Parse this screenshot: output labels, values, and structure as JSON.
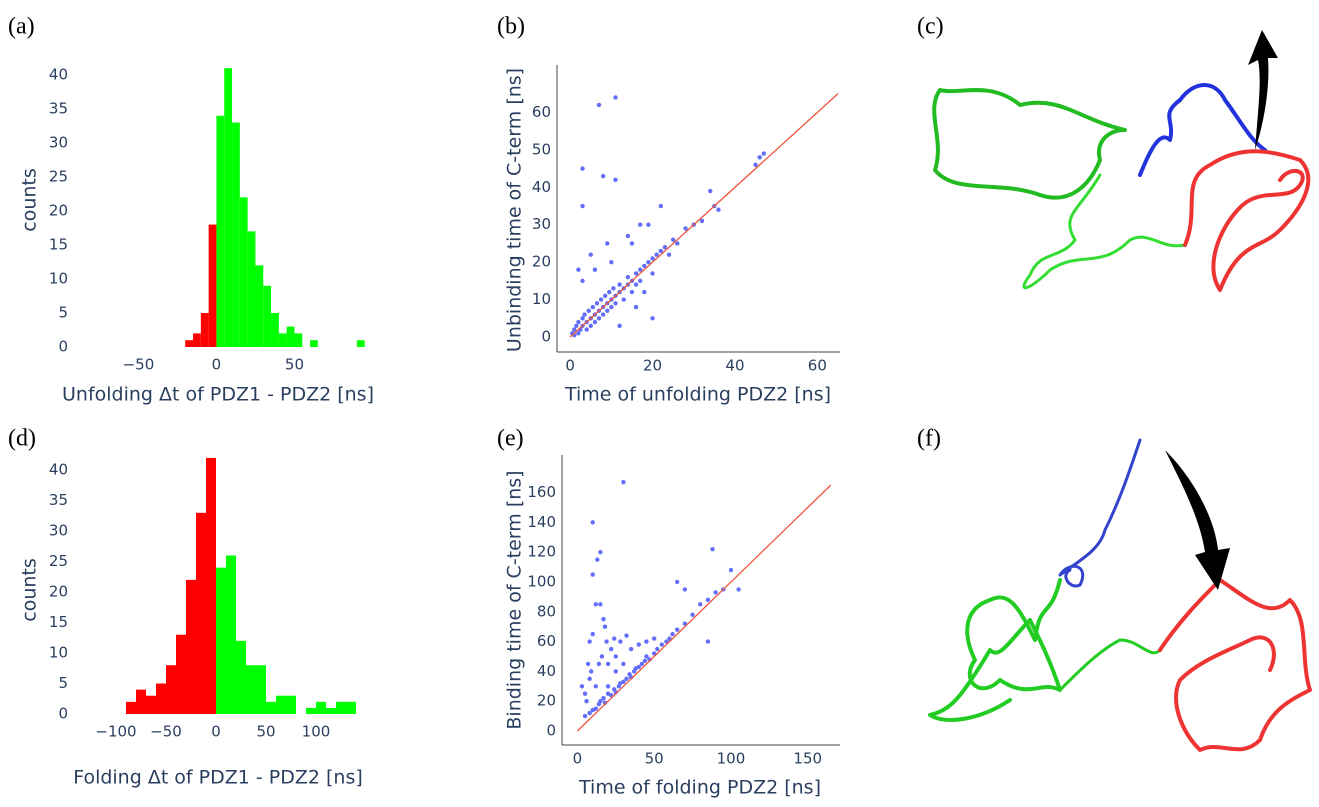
{
  "panel_labels": [
    "(a)",
    "(b)",
    "(c)",
    "(d)",
    "(e)",
    "(f)"
  ],
  "chart_data": [
    {
      "type": "histogram",
      "xlabel": "Unfolding Δt of PDZ1 - PDZ2 [ns]",
      "ylabel": "counts",
      "bins": [
        -20,
        -15,
        -10,
        -5,
        0,
        5,
        10,
        15,
        20,
        25,
        30,
        35,
        40,
        45,
        50,
        55,
        60,
        65,
        70,
        75,
        80,
        85,
        90,
        95
      ],
      "values": [
        1,
        2,
        5,
        18,
        34,
        41,
        33,
        22,
        17,
        12,
        9,
        5,
        2,
        3,
        2,
        0,
        1,
        0,
        0,
        0,
        0,
        0,
        1
      ],
      "colors": [
        "#ff0000",
        "#ff0000",
        "#ff0000",
        "#ff0000",
        "#00ff00",
        "#00ff00",
        "#00ff00",
        "#00ff00",
        "#00ff00",
        "#00ff00",
        "#00ff00",
        "#00ff00",
        "#00ff00",
        "#00ff00",
        "#00ff00",
        "#00ff00",
        "#00ff00",
        "#00ff00",
        "#00ff00",
        "#00ff00",
        "#00ff00",
        "#00ff00",
        "#00ff00"
      ],
      "xlim": [
        -90,
        92
      ],
      "ylim": [
        0,
        42.2
      ],
      "xticks": [
        {
          "value": -50,
          "label": "−50"
        },
        0,
        50
      ],
      "yticks": [
        0,
        5,
        10,
        15,
        20,
        25,
        30,
        35,
        40
      ]
    },
    {
      "type": "scatter",
      "xlabel": "Time of unfolding PDZ2 [ns]",
      "ylabel": "Unbinding time of C-term [ns]",
      "color": "#636efa",
      "x": [
        0.5,
        1,
        1,
        1.5,
        2,
        2,
        2.5,
        3,
        3,
        3.5,
        4,
        4,
        4.5,
        5,
        5,
        5.5,
        6,
        6,
        6.5,
        7,
        7,
        7.5,
        8,
        8,
        8.5,
        9,
        9,
        9.5,
        10,
        10,
        10.5,
        11,
        11,
        12,
        12,
        13,
        13,
        14,
        14,
        15,
        15,
        16,
        16,
        17,
        17,
        18,
        18,
        19,
        20,
        20,
        21,
        22,
        23,
        24,
        25,
        26,
        28,
        30,
        32,
        34,
        35,
        36,
        45,
        46,
        47,
        7,
        11,
        3,
        3,
        8,
        11,
        22,
        17,
        15,
        5,
        2,
        10,
        3,
        6,
        20,
        12,
        9,
        16,
        14,
        19
      ],
      "y": [
        1,
        0.5,
        2,
        3,
        1,
        4,
        2,
        5,
        3,
        6,
        2,
        4,
        7,
        5,
        3,
        8,
        6,
        4,
        9,
        7,
        5,
        10,
        8,
        6,
        11,
        9,
        7,
        12,
        10,
        8,
        13,
        11,
        9,
        12,
        14,
        13,
        10,
        14,
        16,
        15,
        12,
        17,
        14,
        18,
        15,
        19,
        12,
        20,
        21,
        17,
        22,
        23,
        24,
        22,
        26,
        25,
        29,
        30,
        31,
        39,
        35,
        34,
        46,
        48,
        49,
        62,
        64,
        45,
        35,
        43,
        42,
        35,
        30,
        25,
        22,
        18,
        20,
        15,
        18,
        5,
        3,
        25,
        8,
        27,
        30
      ],
      "fit_line": {
        "x": [
          0,
          65
        ],
        "y": [
          0,
          65
        ],
        "color": "#ef553b"
      },
      "xlim": [
        -3.2,
        65.5
      ],
      "ylim": [
        -4,
        70
      ],
      "xticks": [
        0,
        20,
        40,
        60
      ],
      "yticks": [
        0,
        10,
        20,
        30,
        40,
        50,
        60
      ]
    },
    {
      "type": "histogram",
      "xlabel": "Folding Δt of PDZ1 - PDZ2 [ns]",
      "ylabel": "counts",
      "bins": [
        -90,
        -80,
        -70,
        -60,
        -50,
        -40,
        -30,
        -20,
        -10,
        0,
        10,
        20,
        30,
        40,
        50,
        60,
        70,
        80,
        90,
        100,
        110,
        120,
        130,
        140
      ],
      "values": [
        2,
        4,
        3,
        5,
        8,
        13,
        22,
        33,
        42,
        24,
        26,
        12,
        8,
        8,
        2,
        3,
        3,
        0,
        1,
        2,
        1,
        2,
        2
      ],
      "colors": [
        "#ff0000",
        "#ff0000",
        "#ff0000",
        "#ff0000",
        "#ff0000",
        "#ff0000",
        "#ff0000",
        "#ff0000",
        "#ff0000",
        "#00ff00",
        "#00ff00",
        "#00ff00",
        "#00ff00",
        "#00ff00",
        "#00ff00",
        "#00ff00",
        "#00ff00",
        "#00ff00",
        "#00ff00",
        "#00ff00",
        "#00ff00",
        "#00ff00",
        "#00ff00"
      ],
      "xlim": [
        -140,
        144
      ],
      "ylim": [
        0,
        43.3
      ],
      "xticks": [
        {
          "value": -100,
          "label": "−100"
        },
        {
          "value": -50,
          "label": "−50"
        },
        0,
        50,
        100
      ],
      "yticks": [
        0,
        5,
        10,
        15,
        20,
        25,
        30,
        35,
        40
      ]
    },
    {
      "type": "scatter",
      "xlabel": "Time of folding PDZ2 [ns]",
      "ylabel": "Binding time of C-term [ns]",
      "color": "#636efa",
      "x": [
        5,
        8,
        10,
        12,
        14,
        15,
        17,
        18,
        20,
        22,
        24,
        25,
        27,
        28,
        30,
        32,
        34,
        35,
        37,
        38,
        40,
        42,
        44,
        45,
        47,
        50,
        52,
        55,
        58,
        60,
        62,
        65,
        70,
        75,
        80,
        85,
        90,
        95,
        100,
        3,
        5,
        6,
        7,
        8,
        9,
        10,
        10,
        10,
        12,
        13,
        15,
        15,
        16,
        17,
        18,
        19,
        20,
        22,
        24,
        25,
        28,
        30,
        32,
        35,
        40,
        45,
        50,
        65,
        70,
        85,
        88,
        105,
        20,
        14,
        8,
        12,
        25,
        30
      ],
      "y": [
        10,
        12,
        14,
        15,
        18,
        20,
        22,
        19,
        25,
        24,
        28,
        26,
        30,
        32,
        33,
        35,
        38,
        36,
        40,
        42,
        43,
        45,
        47,
        50,
        48,
        52,
        55,
        58,
        60,
        62,
        65,
        68,
        72,
        78,
        85,
        88,
        93,
        95,
        108,
        30,
        25,
        20,
        45,
        35,
        40,
        65,
        105,
        140,
        85,
        115,
        120,
        85,
        50,
        75,
        70,
        60,
        45,
        55,
        62,
        50,
        60,
        167,
        64,
        55,
        58,
        60,
        62,
        100,
        95,
        60,
        122,
        95,
        30,
        45,
        60,
        30,
        40,
        45
      ],
      "fit_line": {
        "x": [
          0,
          165
        ],
        "y": [
          0,
          165
        ],
        "color": "#ef553b"
      },
      "xlim": [
        -10,
        171
      ],
      "ylim": [
        -9.4,
        178.5
      ],
      "xticks": [
        0,
        50,
        100,
        150
      ],
      "yticks": [
        0,
        20,
        40,
        60,
        80,
        100,
        120,
        140,
        160
      ]
    }
  ]
}
